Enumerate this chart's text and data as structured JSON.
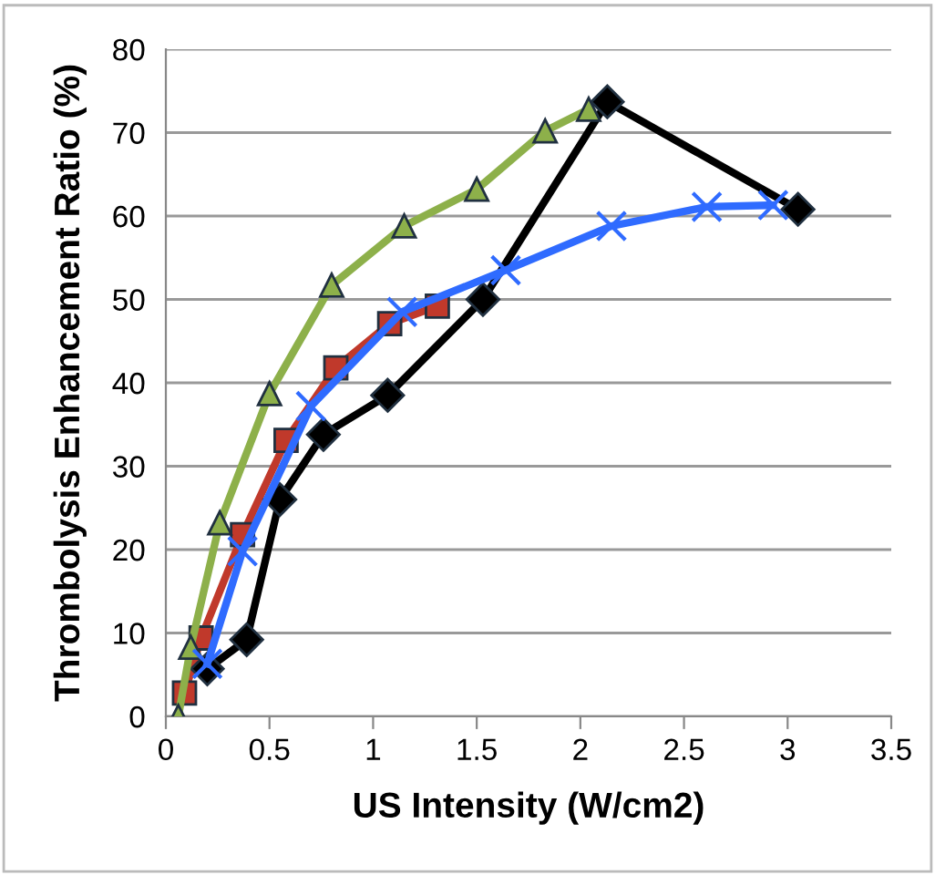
{
  "chart_data": {
    "type": "line",
    "xlabel": "US Intensity (W/cm2)",
    "ylabel": "Thrombolysis Enhancement Ratio (%)",
    "xlim": [
      0,
      3.5
    ],
    "xticks": [
      0,
      0.5,
      1,
      1.5,
      2,
      2.5,
      3,
      3.5
    ],
    "ylim": [
      0,
      80
    ],
    "yticks": [
      0,
      10,
      20,
      30,
      40,
      50,
      60,
      70,
      80
    ],
    "grid": "y",
    "legend": false,
    "series": [
      {
        "color": "#c0392b",
        "marker": "square",
        "x": [
          0.09,
          0.17,
          0.37,
          0.58,
          0.82,
          1.08,
          1.31
        ],
        "values": [
          2.8,
          9.4,
          21.8,
          33.1,
          41.8,
          47.1,
          49.2
        ]
      },
      {
        "color": "#000000",
        "marker": "diamond",
        "x": [
          0.2,
          0.39,
          0.55,
          0.76,
          1.07,
          1.53,
          2.13,
          3.05
        ],
        "values": [
          5.7,
          9.2,
          26,
          33.8,
          38.5,
          50,
          73.7,
          60.8
        ]
      },
      {
        "color": "#8db04a",
        "marker": "triangle",
        "x": [
          0.06,
          0.12,
          0.26,
          0.5,
          0.8,
          1.15,
          1.5,
          1.83,
          2.04
        ],
        "values": [
          0,
          8.3,
          23.2,
          38.7,
          51.7,
          58.8,
          63.2,
          70.2,
          72.8
        ]
      },
      {
        "color": "#2f6bff",
        "marker": "cross",
        "x": [
          0.2,
          0.37,
          0.7,
          1.14,
          1.64,
          2.15,
          2.61,
          2.93
        ],
        "values": [
          6.3,
          19.8,
          37.2,
          48.5,
          53.5,
          58.8,
          61.1,
          61.3
        ]
      }
    ]
  }
}
